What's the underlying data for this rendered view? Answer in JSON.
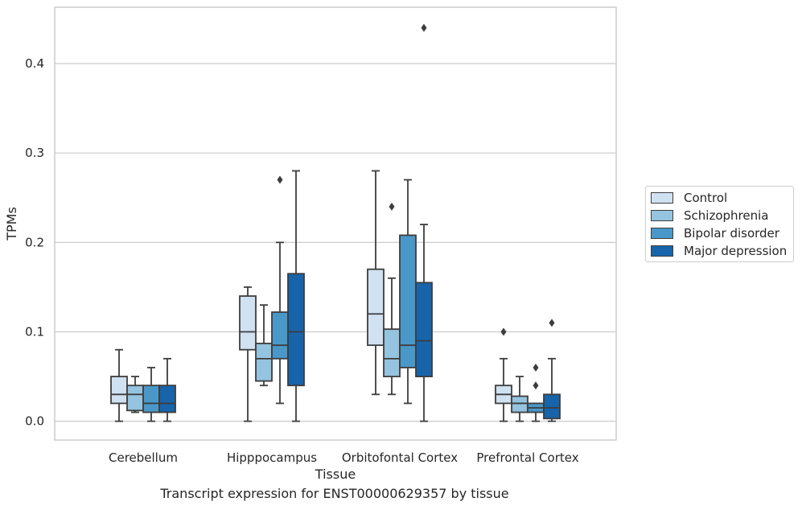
{
  "chart_data": {
    "type": "box",
    "xlabel": "Tissue",
    "ylabel": "TPMs",
    "ylim": [
      -0.021,
      0.463
    ],
    "yticks": [
      0.0,
      0.1,
      0.2,
      0.3,
      0.4
    ],
    "ytick_labels": [
      "0.0",
      "0.1",
      "0.2",
      "0.3",
      "0.4"
    ],
    "grid": "horizontal",
    "legend_position": "right",
    "categories": [
      "Cerebellum",
      "Hipppocampus",
      "Orbitofontal Cortex",
      "Prefrontal Cortex"
    ],
    "series": [
      {
        "name": "Control",
        "color": "#d0e1f2",
        "boxes": [
          {
            "whislo": 0.0,
            "q1": 0.02,
            "med": 0.03,
            "q3": 0.05,
            "whishi": 0.08,
            "fliers": []
          },
          {
            "whislo": 0.0,
            "q1": 0.08,
            "med": 0.1,
            "q3": 0.14,
            "whishi": 0.15,
            "fliers": []
          },
          {
            "whislo": 0.03,
            "q1": 0.085,
            "med": 0.12,
            "q3": 0.17,
            "whishi": 0.28,
            "fliers": []
          },
          {
            "whislo": 0.0,
            "q1": 0.02,
            "med": 0.03,
            "q3": 0.04,
            "whishi": 0.07,
            "fliers": [
              0.1
            ]
          }
        ]
      },
      {
        "name": "Schizophrenia",
        "color": "#94c4df",
        "boxes": [
          {
            "whislo": 0.01,
            "q1": 0.012,
            "med": 0.03,
            "q3": 0.04,
            "whishi": 0.05,
            "fliers": []
          },
          {
            "whislo": 0.04,
            "q1": 0.045,
            "med": 0.07,
            "q3": 0.087,
            "whishi": 0.13,
            "fliers": []
          },
          {
            "whislo": 0.03,
            "q1": 0.05,
            "med": 0.07,
            "q3": 0.103,
            "whishi": 0.16,
            "fliers": [
              0.24
            ]
          },
          {
            "whislo": 0.0,
            "q1": 0.01,
            "med": 0.02,
            "q3": 0.028,
            "whishi": 0.05,
            "fliers": []
          }
        ]
      },
      {
        "name": "Bipolar disorder",
        "color": "#4a98c9",
        "boxes": [
          {
            "whislo": 0.0,
            "q1": 0.01,
            "med": 0.02,
            "q3": 0.04,
            "whishi": 0.06,
            "fliers": []
          },
          {
            "whislo": 0.02,
            "q1": 0.07,
            "med": 0.085,
            "q3": 0.122,
            "whishi": 0.2,
            "fliers": [
              0.27
            ]
          },
          {
            "whislo": 0.02,
            "q1": 0.06,
            "med": 0.085,
            "q3": 0.208,
            "whishi": 0.27,
            "fliers": []
          },
          {
            "whislo": 0.0,
            "q1": 0.01,
            "med": 0.015,
            "q3": 0.02,
            "whishi": 0.02,
            "fliers": [
              0.04,
              0.06
            ]
          }
        ]
      },
      {
        "name": "Major depression",
        "color": "#1764ab",
        "boxes": [
          {
            "whislo": 0.0,
            "q1": 0.01,
            "med": 0.02,
            "q3": 0.04,
            "whishi": 0.07,
            "fliers": []
          },
          {
            "whislo": 0.0,
            "q1": 0.04,
            "med": 0.1,
            "q3": 0.165,
            "whishi": 0.28,
            "fliers": []
          },
          {
            "whislo": 0.0,
            "q1": 0.05,
            "med": 0.09,
            "q3": 0.155,
            "whishi": 0.22,
            "fliers": [
              0.44
            ]
          },
          {
            "whislo": 0.0,
            "q1": 0.003,
            "med": 0.015,
            "q3": 0.03,
            "whishi": 0.07,
            "fliers": [
              0.11
            ]
          }
        ]
      }
    ]
  },
  "caption": "Transcript expression for ENST00000629357 by tissue",
  "colors": {
    "grid": "#cccccc",
    "axes_edge": "#cccccc",
    "box_edge": "#3d3d3d",
    "text": "#262626"
  }
}
